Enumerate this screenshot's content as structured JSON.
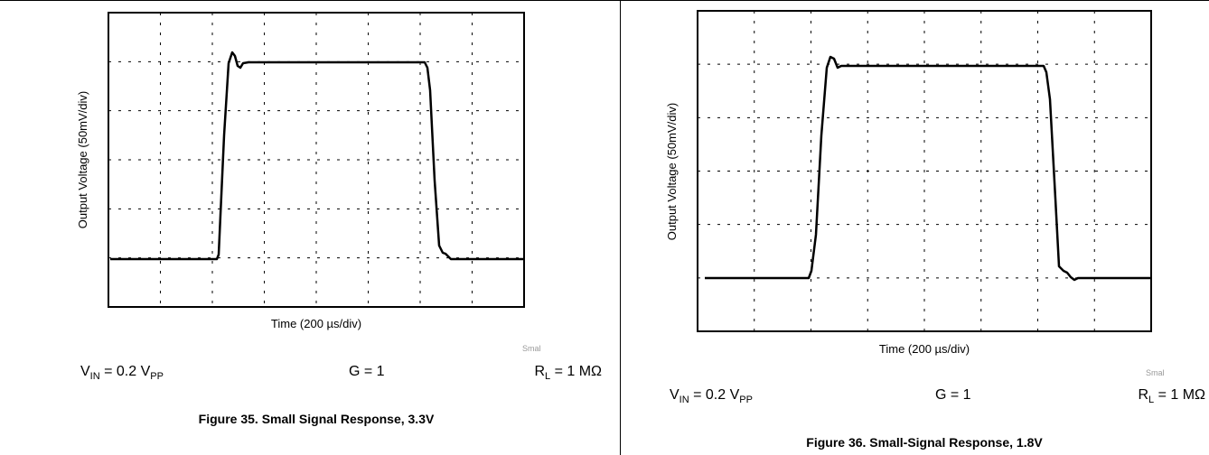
{
  "figures": [
    {
      "y_label": "Output Voltage (50mV/div)",
      "x_label": "Time (200 µs/div)",
      "vin": [
        "V",
        "IN",
        " = 0.2 V",
        "PP"
      ],
      "gain": "G = 1",
      "rl": [
        "R",
        "L",
        " = 1 MΩ"
      ],
      "note": "Smal",
      "caption": "Figure 35. Small Signal Response, 3.3V"
    },
    {
      "y_label": "Output Voltage (50mV/div)",
      "x_label": "Time (200 µs/div)",
      "vin": [
        "V",
        "IN",
        " = 0.2 V",
        "PP"
      ],
      "gain": "G = 1",
      "rl": [
        "R",
        "L",
        " = 1 MΩ"
      ],
      "note": "Smal",
      "caption": "Figure 36. Small-Signal Response, 1.8V"
    }
  ]
}
